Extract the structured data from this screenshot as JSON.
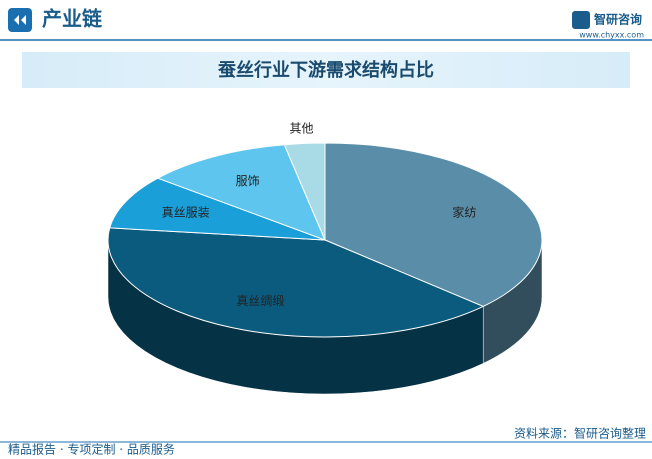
{
  "header": {
    "section": "产业链",
    "brand": "智研咨询",
    "url": "www.chyxx.com"
  },
  "chart_data": {
    "type": "pie3d",
    "title": "蚕丝行业下游需求结构占比",
    "categories": [
      "家纺",
      "真丝绸缎",
      "真丝服装",
      "服饰",
      "其他"
    ],
    "values": [
      37,
      40,
      9,
      11,
      3
    ],
    "colors": [
      "#5a8ea8",
      "#0b5b7e",
      "#1b9fd8",
      "#5ec6ee",
      "#a9dbe6"
    ]
  },
  "footer": {
    "left": "精品报告 · 专项定制 · 品质服务",
    "right": "资料来源：智研咨询整理"
  }
}
